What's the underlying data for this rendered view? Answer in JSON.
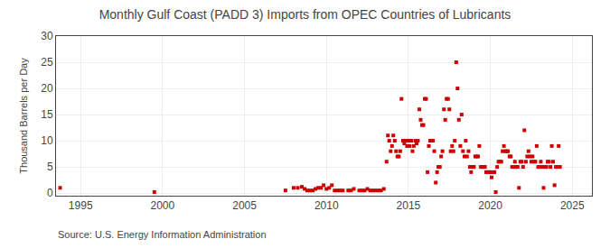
{
  "chart_data": {
    "type": "scatter",
    "title": "Monthly Gulf Coast (PADD 3) Imports from OPEC Countries of Lubricants",
    "ylabel": "Thousand Barrels per Day",
    "annotations": [
      "Source: U.S. Energy Information Administration"
    ],
    "color": "#cc0000",
    "marker": "square",
    "grid": true,
    "xlim": [
      1993.5,
      2026.2
    ],
    "ylim": [
      -0.5,
      30
    ],
    "xticks": [
      1995,
      2000,
      2005,
      2010,
      2015,
      2020,
      2025
    ],
    "yticks": [
      0,
      5,
      10,
      15,
      20,
      25,
      30
    ],
    "x": [
      1993.75,
      1999.5,
      2007.5,
      2008.0,
      2008.25,
      2008.5,
      2008.67,
      2008.83,
      2009.0,
      2009.17,
      2009.33,
      2009.5,
      2009.67,
      2009.83,
      2010.0,
      2010.17,
      2010.33,
      2010.5,
      2010.67,
      2010.83,
      2011.0,
      2011.33,
      2011.5,
      2011.67,
      2012.0,
      2012.17,
      2012.33,
      2012.5,
      2012.67,
      2012.83,
      2013.0,
      2013.17,
      2013.33,
      2013.5,
      2013.67,
      2013.75,
      2013.83,
      2013.92,
      2014.0,
      2014.08,
      2014.17,
      2014.25,
      2014.33,
      2014.42,
      2014.5,
      2014.58,
      2014.67,
      2014.75,
      2014.83,
      2014.92,
      2015.0,
      2015.08,
      2015.17,
      2015.25,
      2015.33,
      2015.42,
      2015.5,
      2015.58,
      2015.67,
      2015.75,
      2015.83,
      2015.92,
      2016.0,
      2016.08,
      2016.17,
      2016.25,
      2016.33,
      2016.42,
      2016.5,
      2016.58,
      2016.67,
      2016.75,
      2016.83,
      2016.92,
      2017.0,
      2017.08,
      2017.17,
      2017.25,
      2017.33,
      2017.42,
      2017.5,
      2017.58,
      2017.67,
      2017.75,
      2017.83,
      2017.92,
      2018.0,
      2018.08,
      2018.17,
      2018.25,
      2018.33,
      2018.42,
      2018.5,
      2018.58,
      2018.67,
      2018.75,
      2018.83,
      2018.92,
      2019.0,
      2019.08,
      2019.17,
      2019.25,
      2019.33,
      2019.42,
      2019.5,
      2019.58,
      2019.67,
      2019.75,
      2019.83,
      2019.92,
      2020.0,
      2020.08,
      2020.17,
      2020.25,
      2020.33,
      2020.42,
      2020.5,
      2020.58,
      2020.67,
      2020.75,
      2020.83,
      2020.92,
      2021.0,
      2021.08,
      2021.17,
      2021.25,
      2021.33,
      2021.42,
      2021.5,
      2021.58,
      2021.67,
      2021.75,
      2021.83,
      2021.92,
      2022.0,
      2022.08,
      2022.17,
      2022.25,
      2022.33,
      2022.42,
      2022.5,
      2022.58,
      2022.67,
      2022.75,
      2022.83,
      2022.92,
      2023.0,
      2023.08,
      2023.17,
      2023.25,
      2023.33,
      2023.42,
      2023.5,
      2023.58,
      2023.67,
      2023.75,
      2023.83,
      2023.92,
      2024.0,
      2024.08,
      2024.17,
      2024.25
    ],
    "values": [
      1.0,
      0.2,
      0.5,
      1.0,
      1.0,
      1.2,
      0.8,
      0.5,
      0.5,
      0.5,
      0.8,
      1.0,
      1.0,
      1.5,
      0.8,
      1.0,
      1.5,
      0.5,
      0.5,
      0.5,
      0.5,
      0.5,
      0.5,
      0.8,
      0.5,
      0.5,
      0.5,
      0.8,
      0.5,
      0.5,
      0.5,
      0.5,
      0.5,
      0.8,
      6.0,
      11.0,
      10.0,
      8.0,
      9.0,
      11.0,
      10.0,
      8.0,
      7.0,
      7.0,
      8.0,
      18.0,
      10.0,
      9.5,
      10.0,
      9.0,
      10.0,
      9.0,
      10.0,
      8.0,
      9.0,
      10.0,
      9.5,
      10.0,
      16.0,
      14.0,
      13.0,
      13.0,
      18.0,
      18.0,
      4.0,
      9.0,
      10.0,
      10.0,
      10.0,
      8.0,
      2.0,
      4.0,
      5.0,
      5.0,
      7.0,
      8.0,
      16.0,
      14.0,
      18.0,
      18.0,
      16.0,
      8.0,
      9.0,
      8.0,
      10.0,
      25.0,
      20.0,
      14.0,
      9.0,
      15.0,
      8.0,
      7.0,
      10.0,
      7.0,
      8.0,
      5.0,
      4.0,
      5.0,
      5.0,
      7.0,
      7.0,
      7.0,
      9.0,
      5.0,
      5.0,
      5.0,
      5.0,
      4.0,
      4.0,
      4.0,
      4.0,
      3.0,
      4.0,
      4.0,
      0.2,
      5.0,
      6.0,
      6.0,
      6.0,
      8.0,
      9.0,
      8.0,
      8.0,
      8.0,
      7.0,
      7.0,
      5.0,
      5.0,
      6.0,
      5.0,
      5.0,
      1.0,
      6.0,
      6.0,
      5.0,
      12.0,
      6.0,
      7.0,
      8.0,
      7.0,
      6.0,
      7.0,
      6.0,
      6.0,
      9.0,
      5.0,
      5.0,
      6.0,
      5.0,
      1.0,
      5.0,
      5.0,
      6.0,
      6.0,
      5.0,
      9.0,
      6.0,
      1.5,
      5.0,
      5.0,
      9.0,
      5.0
    ]
  }
}
